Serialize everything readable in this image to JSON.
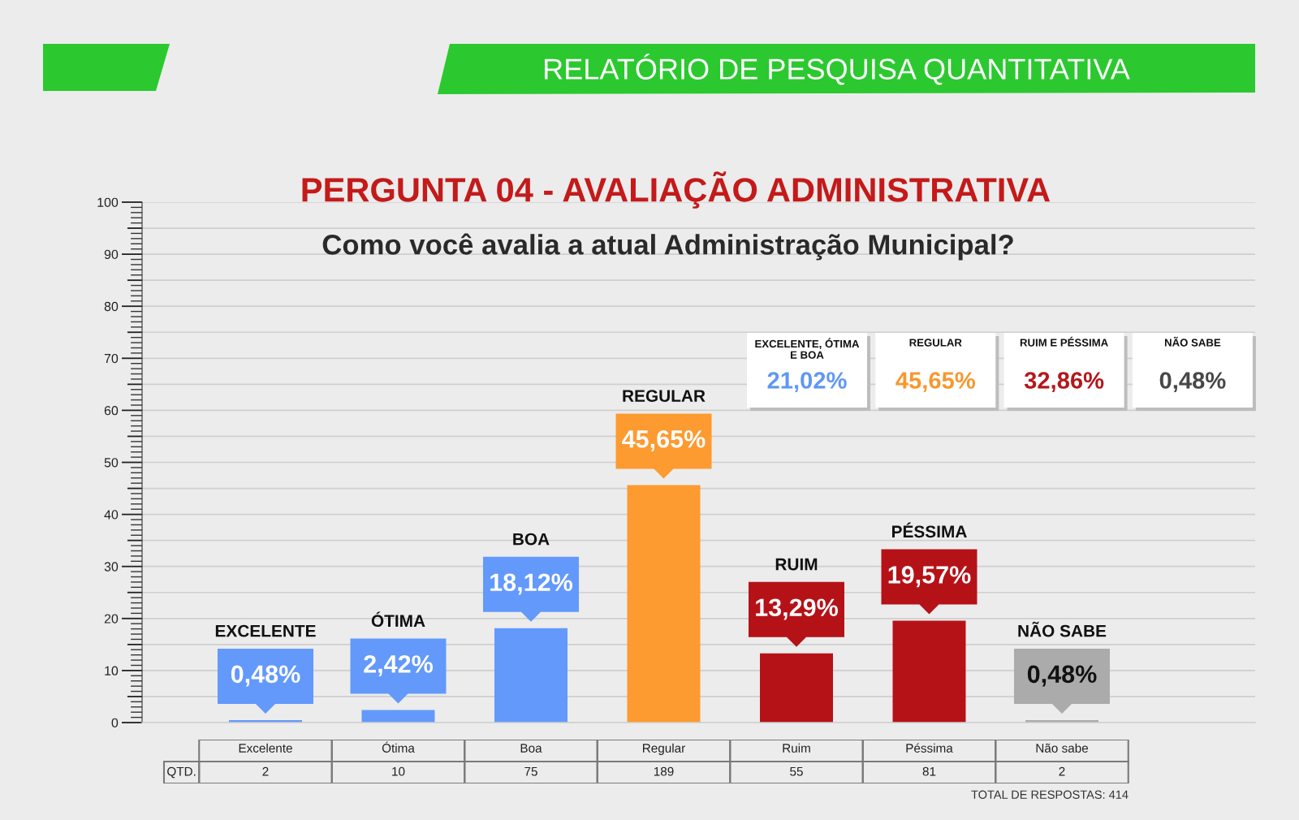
{
  "chart_data": {
    "type": "bar",
    "title": "PERGUNTA 04 - AVALIAÇÃO ADMINISTRATIVA",
    "subtitle": "Como você avalia a atual Administração Municipal?",
    "categories": [
      "Excelente",
      "Ótima",
      "Boa",
      "Regular",
      "Ruim",
      "Péssima",
      "Não sabe"
    ],
    "values": [
      0.48,
      2.42,
      18.12,
      45.65,
      13.29,
      19.57,
      0.48
    ],
    "colors": [
      "#6399fb",
      "#6399fb",
      "#6399fb",
      "#fd9a30",
      "#b51217",
      "#b51217",
      "#ababab"
    ],
    "value_labels": [
      "0,48%",
      "2,42%",
      "18,12%",
      "45,65%",
      "13,29%",
      "19,57%",
      "0,48%"
    ],
    "ylim": [
      0,
      100
    ],
    "yticks": [
      0,
      {
        "value": 5,
        "label": null
      },
      10,
      {
        "value": 15,
        "label": null
      },
      20,
      {
        "value": 25,
        "label": null
      },
      30,
      {
        "value": 35,
        "label": null
      },
      40,
      {
        "value": 45,
        "label": null
      },
      50,
      {
        "value": 55,
        "label": null
      },
      60,
      {
        "value": 65,
        "label": null
      },
      70,
      {
        "value": 75,
        "label": null
      },
      80,
      {
        "value": 85,
        "label": null
      },
      90,
      {
        "value": 95,
        "label": null
      },
      100
    ],
    "grid": "y",
    "annotations": [
      "RELATÓRIO DE PESQUISA QUANTITATIVA",
      "EXCELENTE, ÓTIMA E BOA",
      "21,02%",
      "REGULAR",
      "45,65%",
      "RUIM E PÉSSIMA",
      "32,86%",
      "NÃO SABE",
      "0,48%",
      "QTD.",
      "2",
      "10",
      "75",
      "189",
      "55",
      "81",
      "2",
      "TOTAL DE RESPOSTAS: 414",
      "EXCELENTE",
      "ÓTIMA",
      "BOA",
      "REGULAR",
      "RUIM",
      "PÉSSIMA",
      "NÃO SABE"
    ]
  }
}
